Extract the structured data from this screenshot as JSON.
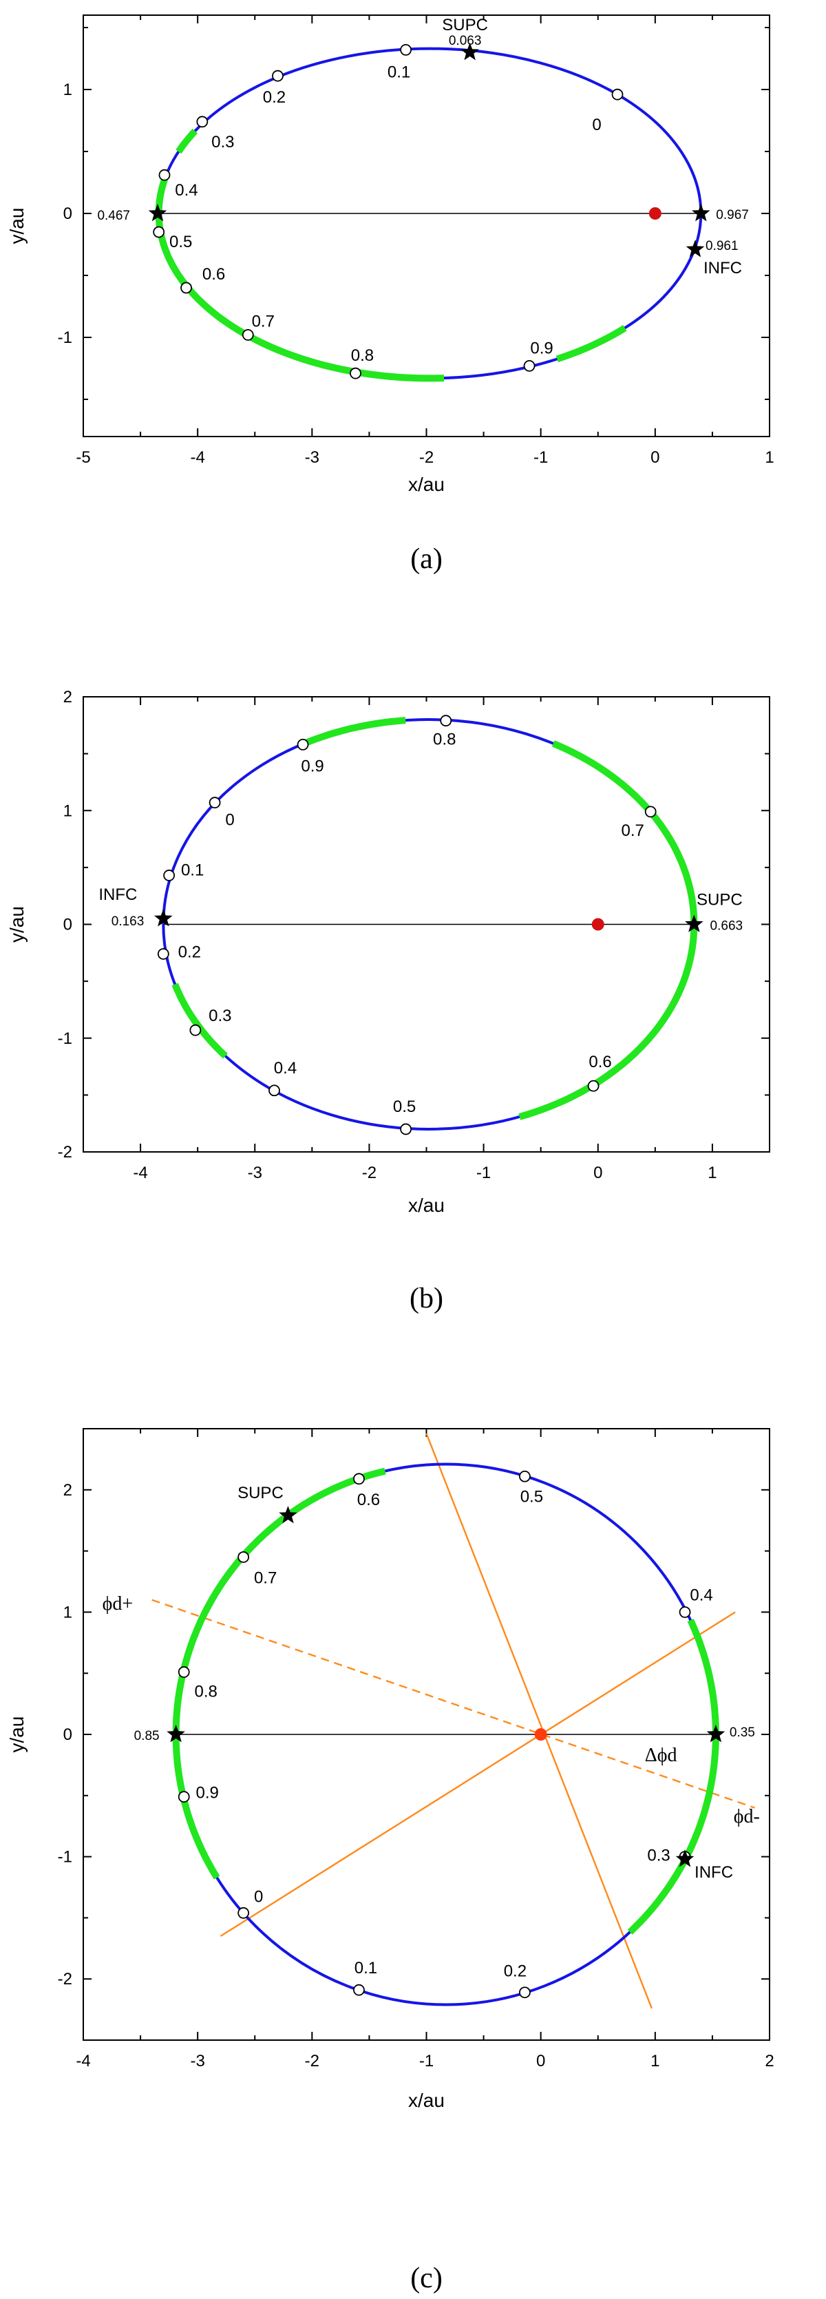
{
  "chart_data": [
    {
      "type": "scatter",
      "panel_caption": "(a)",
      "xlabel": "x/au",
      "ylabel": "y/au",
      "xlim": [
        -5,
        1
      ],
      "ylim": [
        -1.8,
        1.6
      ],
      "xticks": [
        "-5",
        "-4",
        "-3",
        "-2",
        "-1",
        "0",
        "1"
      ],
      "yticks": [
        "1",
        "0",
        "-1"
      ],
      "ytick_values": [
        1,
        0,
        -1
      ],
      "orbit": {
        "center_x": -1.97,
        "center_y": 0,
        "semi_x": 2.37,
        "semi_y": 1.33
      },
      "orbit_color": "#1515e6",
      "highlight_color": "#22e61e",
      "highlight_arcs": [
        [
          150,
          158
        ],
        [
          168,
          273
        ],
        [
          298,
          316
        ]
      ],
      "star_color": "#d41010",
      "star_position": [
        0,
        0
      ],
      "phase_points": [
        {
          "label": "0",
          "x": -0.33,
          "y": 0.96
        },
        {
          "label": "0.1",
          "x": -2.18,
          "y": 1.32
        },
        {
          "label": "0.2",
          "x": -3.3,
          "y": 1.11
        },
        {
          "label": "0.3",
          "x": -3.96,
          "y": 0.74
        },
        {
          "label": "0.4",
          "x": -4.29,
          "y": 0.31
        },
        {
          "label": "0.5",
          "x": -4.34,
          "y": -0.15
        },
        {
          "label": "0.6",
          "x": -4.1,
          "y": -0.6
        },
        {
          "label": "0.7",
          "x": -3.56,
          "y": -0.98
        },
        {
          "label": "0.8",
          "x": -2.62,
          "y": -1.29
        },
        {
          "label": "0.9",
          "x": -1.1,
          "y": -1.23
        }
      ],
      "events": [
        {
          "name": "SUPC",
          "phase": "0.063",
          "x": -1.62,
          "y": 1.3
        },
        {
          "name": "",
          "phase": "0.467",
          "x": -4.35,
          "y": 0.0
        },
        {
          "name": "",
          "phase": "0.967",
          "x": 0.4,
          "y": 0.0
        },
        {
          "name": "INFC",
          "phase": "0.961",
          "x": 0.35,
          "y": -0.29
        }
      ],
      "reference_lines": [
        {
          "style": "thin",
          "from": [
            -4.35,
            0
          ],
          "to": [
            0.4,
            0
          ]
        }
      ]
    },
    {
      "type": "scatter",
      "panel_caption": "(b)",
      "xlabel": "x/au",
      "ylabel": "y/au",
      "xlim": [
        -4.5,
        1.5
      ],
      "ylim": [
        -2,
        2
      ],
      "xticks": [
        "-4",
        "-3",
        "-2",
        "-1",
        "0",
        "1"
      ],
      "xtick_values": [
        -4,
        -3,
        -2,
        -1,
        0,
        1
      ],
      "yticks": [
        "2",
        "1",
        "0",
        "-1",
        "-2"
      ],
      "ytick_values": [
        2,
        1,
        0,
        -1,
        -2
      ],
      "orbit": {
        "center_x": -1.48,
        "center_y": 0,
        "semi_x": 2.32,
        "semi_y": 1.8
      },
      "orbit_color": "#1515e6",
      "highlight_color": "#22e61e",
      "highlight_arcs": [
        [
          0,
          62
        ],
        [
          95,
          118
        ],
        [
          197,
          220
        ],
        [
          290,
          360
        ]
      ],
      "star_color": "#d41010",
      "star_position": [
        0,
        0
      ],
      "phase_points": [
        {
          "label": "0",
          "x": -3.35,
          "y": 1.07
        },
        {
          "label": "0.1",
          "x": -3.75,
          "y": 0.43
        },
        {
          "label": "0.2",
          "x": -3.8,
          "y": -0.26
        },
        {
          "label": "0.3",
          "x": -3.52,
          "y": -0.93
        },
        {
          "label": "0.4",
          "x": -2.83,
          "y": -1.46
        },
        {
          "label": "0.5",
          "x": -1.68,
          "y": -1.8
        },
        {
          "label": "0.6",
          "x": -0.04,
          "y": -1.42
        },
        {
          "label": "0.7",
          "x": 0.46,
          "y": 0.99
        },
        {
          "label": "0.8",
          "x": -1.33,
          "y": 1.79
        },
        {
          "label": "0.9",
          "x": -2.58,
          "y": 1.58
        }
      ],
      "events": [
        {
          "name": "INFC",
          "phase": "0.163",
          "x": -3.8,
          "y": 0.05
        },
        {
          "name": "SUPC",
          "phase": "0.663",
          "x": 0.84,
          "y": 0.0
        }
      ],
      "reference_lines": [
        {
          "style": "thin",
          "from": [
            -3.8,
            0
          ],
          "to": [
            0.84,
            0
          ]
        }
      ]
    },
    {
      "type": "scatter",
      "panel_caption": "(c)",
      "xlabel": "x/au",
      "ylabel": "y/au",
      "xlim": [
        -4,
        2
      ],
      "ylim": [
        -2.5,
        2.5
      ],
      "xticks": [
        "-4",
        "-3",
        "-2",
        "-1",
        "0",
        "1",
        "2"
      ],
      "xtick_values": [
        -4,
        -3,
        -2,
        -1,
        0,
        1,
        2
      ],
      "yticks": [
        "2",
        "1",
        "0",
        "-1",
        "-2"
      ],
      "ytick_values": [
        2,
        1,
        0,
        -1,
        -2
      ],
      "orbit": {
        "center_x": -0.83,
        "center_y": 0,
        "semi_x": 2.36,
        "semi_y": 2.21
      },
      "orbit_color": "#1515e6",
      "highlight_color": "#22e61e",
      "highlight_arcs": [
        [
          0,
          25
        ],
        [
          103,
          212
        ],
        [
          313,
          360
        ]
      ],
      "star_color": "#ff3c0a",
      "star_position": [
        0,
        0
      ],
      "phase_points": [
        {
          "label": "0",
          "x": -2.6,
          "y": -1.46
        },
        {
          "label": "0.1",
          "x": -1.59,
          "y": -2.09
        },
        {
          "label": "0.2",
          "x": -0.14,
          "y": -2.11
        },
        {
          "label": "0.3",
          "x": 1.26,
          "y": -1.0
        },
        {
          "label": "0.4",
          "x": 1.26,
          "y": 1.0
        },
        {
          "label": "0.5",
          "x": -0.14,
          "y": 2.11
        },
        {
          "label": "0.6",
          "x": -1.59,
          "y": 2.09
        },
        {
          "label": "0.7",
          "x": -2.6,
          "y": 1.45
        },
        {
          "label": "0.8",
          "x": -3.12,
          "y": 0.51
        },
        {
          "label": "0.9",
          "x": -3.12,
          "y": -0.51
        }
      ],
      "events": [
        {
          "name": "SUPC",
          "phase": "",
          "x": -2.21,
          "y": 1.79
        },
        {
          "name": "",
          "phase": "0.85",
          "x": -3.19,
          "y": 0.0
        },
        {
          "name": "",
          "phase": "0.35",
          "x": 1.53,
          "y": 0.0
        },
        {
          "name": "INFC",
          "phase": "",
          "x": 1.26,
          "y": -1.02
        }
      ],
      "reference_lines": [
        {
          "style": "thin",
          "from": [
            -3.19,
            0
          ],
          "to": [
            1.53,
            0
          ]
        },
        {
          "style": "orange",
          "from": [
            -2.8,
            -1.65
          ],
          "to": [
            1.7,
            1.0
          ]
        },
        {
          "style": "orange",
          "from": [
            -1.0,
            2.46
          ],
          "to": [
            0.97,
            -2.24
          ]
        },
        {
          "style": "orange-dashed",
          "from": [
            -3.4,
            1.1
          ],
          "to": [
            1.87,
            -0.6
          ]
        }
      ],
      "annotations": [
        {
          "text": "ϕd+",
          "x": -3.7,
          "y": 1.02
        },
        {
          "text": "Δϕd",
          "x": 1.05,
          "y": -0.22
        },
        {
          "text": "ϕd-",
          "x": 1.8,
          "y": -0.72
        }
      ]
    }
  ]
}
